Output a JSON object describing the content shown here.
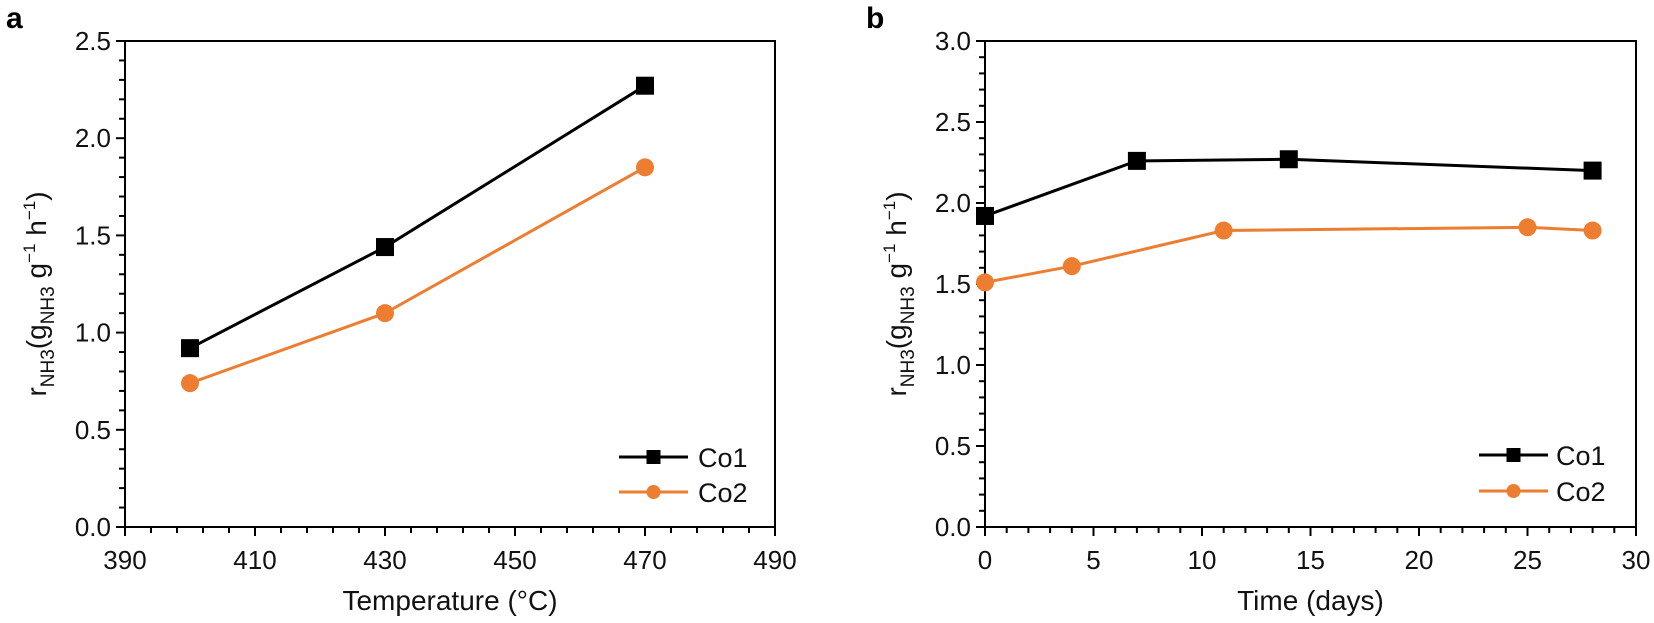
{
  "chart_data": [
    {
      "panel": "a",
      "type": "line",
      "title": "",
      "xlabel": "Temperature (°C)",
      "ylabel": {
        "base": "r",
        "base_sub": "NH3",
        "paren_open": "(g",
        "paren_sub": "NH3",
        "mid": " g",
        "mid_sup": "−1",
        "tail": " h",
        "tail_sup": "−1",
        "close": ")",
        "plain": "r_NH3 (g_NH3 g^-1 h^-1)"
      },
      "xlim": [
        390,
        490
      ],
      "ylim": [
        0,
        2.5
      ],
      "xticks": [
        390,
        410,
        430,
        450,
        470,
        490
      ],
      "xtick_labels": [
        "390",
        "410",
        "430",
        "450",
        "470",
        "490"
      ],
      "x_minor_step": 4,
      "yticks": [
        0,
        0.5,
        1.0,
        1.5,
        2.0,
        2.5
      ],
      "ytick_labels": [
        "0.0",
        "0.5",
        "1.0",
        "1.5",
        "2.0",
        "2.5"
      ],
      "y_minor_step": 0.1,
      "grid": false,
      "legend_position": "bottom-right",
      "series": [
        {
          "name": "Co1",
          "color": "#000000",
          "marker": "square",
          "x": [
            400,
            430,
            470
          ],
          "values": [
            0.92,
            1.44,
            2.27
          ]
        },
        {
          "name": "Co2",
          "color": "#ED7D31",
          "marker": "circle",
          "x": [
            400,
            430,
            470
          ],
          "values": [
            0.74,
            1.1,
            1.85
          ]
        }
      ]
    },
    {
      "panel": "b",
      "type": "line",
      "title": "",
      "xlabel": "Time (days)",
      "ylabel": {
        "base": "r",
        "base_sub": "NH3",
        "paren_open": "(g",
        "paren_sub": "NH3",
        "mid": " g",
        "mid_sup": "−1",
        "tail": " h",
        "tail_sup": "−1",
        "close": ")",
        "plain": "r_NH3 (g_NH3 g^-1 h^-1)"
      },
      "xlim": [
        0,
        30
      ],
      "ylim": [
        0,
        3.0
      ],
      "xticks": [
        0,
        5,
        10,
        15,
        20,
        25,
        30
      ],
      "xtick_labels": [
        "0",
        "5",
        "10",
        "15",
        "20",
        "25",
        "30"
      ],
      "x_minor_step": 1,
      "yticks": [
        0,
        0.5,
        1.0,
        1.5,
        2.0,
        2.5,
        3.0
      ],
      "ytick_labels": [
        "0.0",
        "0.5",
        "1.0",
        "1.5",
        "2.0",
        "2.5",
        "3.0"
      ],
      "y_minor_step": 0.1,
      "grid": false,
      "legend_position": "bottom-right",
      "series": [
        {
          "name": "Co1",
          "color": "#000000",
          "marker": "square",
          "x": [
            0,
            7,
            14,
            28
          ],
          "values": [
            1.92,
            2.26,
            2.27,
            2.2
          ]
        },
        {
          "name": "Co2",
          "color": "#ED7D31",
          "marker": "circle",
          "x": [
            0,
            4,
            11,
            25,
            28
          ],
          "values": [
            1.51,
            1.61,
            1.83,
            1.85,
            1.83
          ]
        }
      ]
    }
  ]
}
